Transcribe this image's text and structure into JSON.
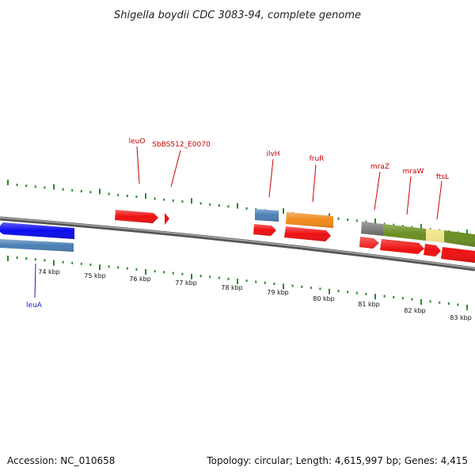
{
  "title": "Shigella boydii CDC 3083-94, complete genome",
  "footer": {
    "accession": "Accession: NC_010658",
    "summary": "Topology: circular; Length: 4,615,997 bp; Genes: 4,415"
  },
  "colors": {
    "backbone": "#777777",
    "tick": "#2a8a2a",
    "cds": "#ee1111",
    "label_red": "#cc0000",
    "label_blue": "#1a1acc"
  },
  "tick_labels": [
    "74 kbp",
    "75 kbp",
    "76 kbp",
    "77 kbp",
    "78 kbp",
    "79 kbp",
    "80 kbp",
    "81 kbp",
    "82 kbp",
    "83 kbp"
  ],
  "gene_labels": [
    {
      "text": "leuA",
      "color": "#1a1acc"
    },
    {
      "text": "leuO",
      "color": "#cc0000"
    },
    {
      "text": "SbBS512_E0070",
      "color": "#cc0000"
    },
    {
      "text": "ilvH",
      "color": "#cc0000"
    },
    {
      "text": "fruR",
      "color": "#cc0000"
    },
    {
      "text": "mraZ",
      "color": "#cc0000"
    },
    {
      "text": "mraW",
      "color": "#cc0000"
    },
    {
      "text": "ftsL",
      "color": "#cc0000"
    }
  ],
  "features": [
    {
      "kind": "gene",
      "color": "#0a0aee"
    },
    {
      "kind": "segment",
      "color": "#4a7fb5"
    },
    {
      "kind": "cds",
      "color": "#ee1111"
    },
    {
      "kind": "cds",
      "color": "#ee1111"
    },
    {
      "kind": "segment",
      "color": "#4a7fb5"
    },
    {
      "kind": "cds",
      "color": "#ee1111"
    },
    {
      "kind": "segment",
      "color": "#f08a1c"
    },
    {
      "kind": "cds",
      "color": "#ee1111"
    },
    {
      "kind": "segment",
      "color": "#6b6b6b"
    },
    {
      "kind": "segment",
      "color": "#6b8e23"
    },
    {
      "kind": "segment",
      "color": "#f0e68c"
    },
    {
      "kind": "segment",
      "color": "#6b8e23"
    },
    {
      "kind": "cds",
      "color": "#ee1111"
    },
    {
      "kind": "cds",
      "color": "#ee1111"
    },
    {
      "kind": "cds",
      "color": "#ee1111"
    },
    {
      "kind": "cds",
      "color": "#ee1111"
    }
  ]
}
